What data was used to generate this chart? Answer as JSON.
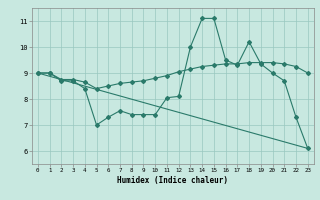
{
  "background_color": "#c8e8e0",
  "line_color": "#2a7a6a",
  "grid_color": "#9ac8c0",
  "xlabel": "Humidex (Indice chaleur)",
  "xlim": [
    -0.5,
    23.5
  ],
  "ylim": [
    5.5,
    11.5
  ],
  "yticks": [
    6,
    7,
    8,
    9,
    10,
    11
  ],
  "xticks": [
    0,
    1,
    2,
    3,
    4,
    5,
    6,
    7,
    8,
    9,
    10,
    11,
    12,
    13,
    14,
    15,
    16,
    17,
    18,
    19,
    20,
    21,
    22,
    23
  ],
  "series1_x": [
    0,
    1,
    2,
    3,
    4,
    5,
    6,
    7,
    8,
    9,
    10,
    11,
    12,
    13,
    14,
    15,
    16,
    17,
    18,
    19,
    20,
    21,
    22,
    23
  ],
  "series1_y": [
    9.0,
    9.0,
    8.7,
    8.7,
    8.4,
    7.0,
    7.3,
    7.55,
    7.4,
    7.4,
    7.4,
    8.05,
    8.1,
    10.0,
    11.1,
    11.1,
    9.5,
    9.3,
    10.2,
    9.35,
    9.0,
    8.7,
    7.3,
    6.1
  ],
  "series2_x": [
    0,
    1,
    2,
    3,
    4,
    5,
    6,
    7,
    8,
    9,
    10,
    11,
    12,
    13,
    14,
    15,
    16,
    17,
    18,
    19,
    20,
    21,
    22,
    23
  ],
  "series2_y": [
    9.0,
    9.0,
    8.75,
    8.75,
    8.65,
    8.4,
    8.5,
    8.6,
    8.65,
    8.7,
    8.8,
    8.9,
    9.05,
    9.15,
    9.25,
    9.3,
    9.35,
    9.35,
    9.4,
    9.4,
    9.4,
    9.35,
    9.25,
    9.0
  ],
  "series3_x": [
    0,
    23
  ],
  "series3_y": [
    9.0,
    6.1
  ]
}
